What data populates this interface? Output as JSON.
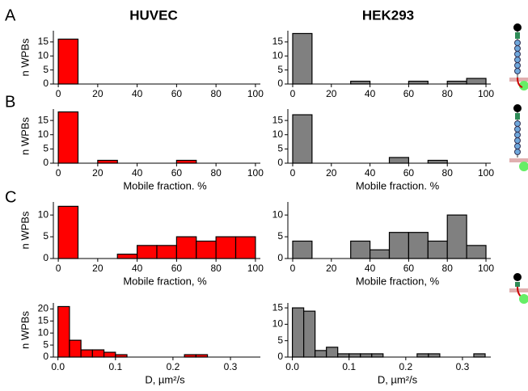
{
  "columns": [
    "HUVEC",
    "HEK293"
  ],
  "panels": [
    "A",
    "B",
    "C"
  ],
  "chart_data": [
    {
      "type": "histogram",
      "color": "#ff0000",
      "ylabel": "n WPBs",
      "bins": [
        0,
        10,
        20,
        30,
        40,
        50,
        60,
        70,
        80,
        90,
        100
      ],
      "values": [
        16,
        0,
        0,
        0,
        0,
        0,
        0,
        0,
        0,
        0
      ],
      "xlim": [
        -2.5,
        102.5
      ],
      "ylim": [
        0,
        19
      ],
      "xticks": [
        0,
        20,
        40,
        60,
        80,
        100
      ],
      "yticks": [
        0,
        5,
        10,
        15
      ]
    },
    {
      "type": "histogram",
      "color": "#808080",
      "bins": [
        0,
        10,
        20,
        30,
        40,
        50,
        60,
        70,
        80,
        90,
        100
      ],
      "values": [
        18,
        0,
        0,
        1,
        0,
        0,
        1,
        0,
        1,
        2
      ],
      "xlim": [
        -2.5,
        102.5
      ],
      "ylim": [
        0,
        19
      ],
      "xticks": [
        0,
        20,
        40,
        60,
        80,
        100
      ],
      "yticks": [
        0,
        5,
        10,
        15
      ]
    },
    {
      "type": "histogram",
      "color": "#ff0000",
      "ylabel": "n WPBs",
      "xlabel": "Mobile fraction. %",
      "bins": [
        0,
        10,
        20,
        30,
        40,
        50,
        60,
        70,
        80,
        90,
        100
      ],
      "values": [
        18,
        0,
        1,
        0,
        0,
        0,
        1,
        0,
        0,
        0
      ],
      "xlim": [
        -2.5,
        102.5
      ],
      "ylim": [
        0,
        19
      ],
      "xticks": [
        0,
        20,
        40,
        60,
        80,
        100
      ],
      "yticks": [
        0,
        5,
        10,
        15
      ]
    },
    {
      "type": "histogram",
      "color": "#808080",
      "xlabel": "Mobile fraction. %",
      "bins": [
        0,
        10,
        20,
        30,
        40,
        50,
        60,
        70,
        80,
        90,
        100
      ],
      "values": [
        17,
        0,
        0,
        0,
        0,
        2,
        0,
        1,
        0,
        0
      ],
      "xlim": [
        -2.5,
        102.5
      ],
      "ylim": [
        0,
        19
      ],
      "xticks": [
        0,
        20,
        40,
        60,
        80,
        100
      ],
      "yticks": [
        0,
        5,
        10,
        15
      ]
    },
    {
      "type": "histogram",
      "color": "#ff0000",
      "ylabel": "n WPBs",
      "xlabel": "Mobile fraction, %",
      "bins": [
        0,
        10,
        20,
        30,
        40,
        50,
        60,
        70,
        80,
        90,
        100
      ],
      "values": [
        12,
        0,
        0,
        1,
        3,
        3,
        5,
        4,
        5,
        5
      ],
      "xlim": [
        -2.5,
        102.5
      ],
      "ylim": [
        0,
        13
      ],
      "xticks": [
        0,
        20,
        40,
        60,
        80,
        100
      ],
      "yticks": [
        0,
        5,
        10
      ]
    },
    {
      "type": "histogram",
      "color": "#808080",
      "xlabel": "Mobile fraction, %",
      "bins": [
        0,
        10,
        20,
        30,
        40,
        50,
        60,
        70,
        80,
        90,
        100
      ],
      "values": [
        4,
        0,
        0,
        4,
        2,
        6,
        6,
        4,
        10,
        3
      ],
      "xlim": [
        -2.5,
        102.5
      ],
      "ylim": [
        0,
        13
      ],
      "xticks": [
        0,
        20,
        40,
        60,
        80,
        100
      ],
      "yticks": [
        0,
        5,
        10
      ]
    },
    {
      "type": "histogram",
      "color": "#ff0000",
      "ylabel": "n WPBs",
      "xlabel": "D, µm²/s",
      "bins": [
        0,
        0.02,
        0.04,
        0.06,
        0.08,
        0.1,
        0.12,
        0.14,
        0.16,
        0.18,
        0.2,
        0.22,
        0.24,
        0.26,
        0.28,
        0.3,
        0.32,
        0.34
      ],
      "values": [
        21,
        7,
        3,
        3,
        2,
        1,
        0,
        0,
        0,
        0,
        0,
        1,
        1,
        0,
        0,
        0,
        0
      ],
      "xlim": [
        -0.008,
        0.352
      ],
      "ylim": [
        0,
        22.5
      ],
      "xticks": [
        {
          "value": 0,
          "label": "0.0"
        },
        0.1,
        0.2,
        0.3
      ],
      "yticks": [
        0,
        5,
        10,
        15,
        20
      ]
    },
    {
      "type": "histogram",
      "color": "#808080",
      "xlabel": "D, µm²/s",
      "bins": [
        0,
        0.02,
        0.04,
        0.06,
        0.08,
        0.1,
        0.12,
        0.14,
        0.16,
        0.18,
        0.2,
        0.22,
        0.24,
        0.26,
        0.28,
        0.3,
        0.32,
        0.34
      ],
      "values": [
        15,
        14,
        2,
        3,
        1,
        1,
        1,
        1,
        0,
        0,
        0,
        1,
        1,
        0,
        0,
        0,
        1
      ],
      "xlim": [
        -0.008,
        0.35
      ],
      "ylim": [
        0,
        16.5
      ],
      "xticks": [
        {
          "value": 0,
          "label": "0.0"
        },
        0.1,
        0.2,
        0.3
      ],
      "yticks": [
        0,
        5,
        10,
        15
      ]
    }
  ]
}
